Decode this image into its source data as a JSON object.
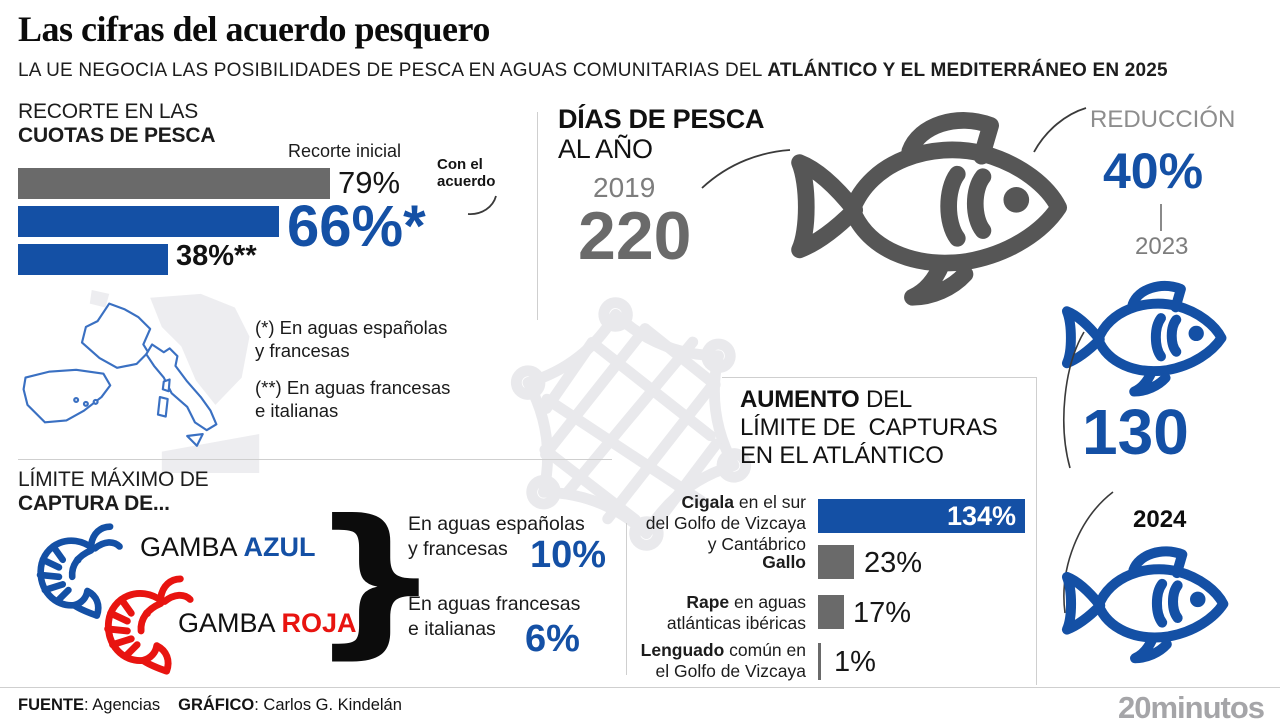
{
  "header": {
    "title": "Las cifras del acuerdo pesquero",
    "subtitle_plain": "LA UE NEGOCIA LAS POSIBILIDADES DE PESCA EN AGUAS COMUNITARIAS DEL ",
    "subtitle_bold": "ATLÁNTICO Y EL MEDITERRÁNEO EN 2025"
  },
  "quota": {
    "heading1": "RECORTE EN LAS",
    "heading2": "CUOTAS DE PESCA",
    "initial_label": "Recorte inicial",
    "agreement_label": "Con el\nacuerdo",
    "bars": [
      {
        "name": "recorte-inicial",
        "value": 79,
        "display": "79%"
      },
      {
        "name": "con-acuerdo-es-fr",
        "value": 66,
        "display": "66%*"
      },
      {
        "name": "con-acuerdo-fr-it",
        "value": 38,
        "display": "38%**"
      }
    ],
    "note1": "(*) En aguas españolas\ny francesas",
    "note2": "(**) En aguas francesas\ne italianas"
  },
  "days": {
    "heading_bold": "DÍAS DE PESCA",
    "heading_regular": "AL AÑO",
    "year_2019": "2019",
    "days_2019": "220",
    "reduction_label": "REDUCCIÓN",
    "reduction_pct": "40%",
    "year_2023": "2023",
    "days_2023": "130",
    "year_2024": "2024"
  },
  "aumento": {
    "title_bold": "AUMENTO",
    "title_rest": " DEL",
    "title_line2": "LÍMITE DE  CAPTURAS",
    "title_line3": "EN EL ATLÁNTICO",
    "bars": [
      {
        "label_bold": "Cigala",
        "label_rest": " en el sur\ndel Golfo de Vizcaya\ny Cantábrico",
        "value": 134,
        "display": "134%"
      },
      {
        "label_bold": "Gallo",
        "label_rest": "",
        "value": 23,
        "display": "23%"
      },
      {
        "label_bold": "Rape",
        "label_rest": " en aguas\natlánticas ibéricas",
        "value": 17,
        "display": "17%"
      },
      {
        "label_bold": "Lenguado",
        "label_rest": " común en\nel Golfo de Vizcaya",
        "value": 1,
        "display": "1%"
      }
    ]
  },
  "limits": {
    "heading1": "LÍMITE MÁXIMO DE",
    "heading2": "CAPTURA DE...",
    "item1_plain": "GAMBA ",
    "item1_colored": "AZUL",
    "item2_plain": "GAMBA ",
    "item2_colored": "ROJA",
    "brace": "}",
    "rate1_text": "En aguas españolas\ny francesas",
    "rate1_value": "10%",
    "rate2_text": "En aguas francesas\ne italianas",
    "rate2_value": "6%"
  },
  "footer": {
    "source_label": "FUENTE",
    "source": ": Agencias",
    "credit_label": "GRÁFICO",
    "credit": ": Carlos G. Kindelán",
    "brand": "20minutos"
  },
  "colors": {
    "accent_blue": "#1450a5",
    "shrimp_red": "#e81410",
    "bar_gray": "#6a6a6a",
    "fish_gray": "#565656",
    "watermark_gray": "#e9e9ec"
  },
  "chart_data": [
    {
      "type": "bar",
      "title": "Recorte en las cuotas de pesca",
      "categories": [
        "Recorte inicial",
        "Con el acuerdo — en aguas españolas y francesas",
        "Con el acuerdo — en aguas francesas e italianas"
      ],
      "values": [
        79,
        66,
        38
      ],
      "unit": "%",
      "notes": [
        "(*) En aguas españolas y francesas",
        "(**) En aguas francesas e italianas"
      ]
    },
    {
      "type": "pictogram",
      "title": "Días de pesca al año",
      "categories": [
        "2019",
        "2023",
        "2024"
      ],
      "values": [
        220,
        130,
        null
      ],
      "annotation": "Reducción 40% entre 2019 y 2023; 2024 mostrado sin cifra"
    },
    {
      "type": "bar",
      "title": "Aumento del límite de capturas en el Atlántico",
      "categories": [
        "Cigala en el sur del Golfo de Vizcaya y Cantábrico",
        "Gallo",
        "Rape en aguas atlánticas ibéricas",
        "Lenguado común en el Golfo de Vizcaya"
      ],
      "values": [
        134,
        23,
        17,
        1
      ],
      "unit": "%"
    },
    {
      "type": "table",
      "title": "Límite máximo de captura de gamba azul y gamba roja",
      "categories": [
        "En aguas españolas y francesas",
        "En aguas francesas e italianas"
      ],
      "values": [
        10,
        6
      ],
      "unit": "%"
    }
  ]
}
